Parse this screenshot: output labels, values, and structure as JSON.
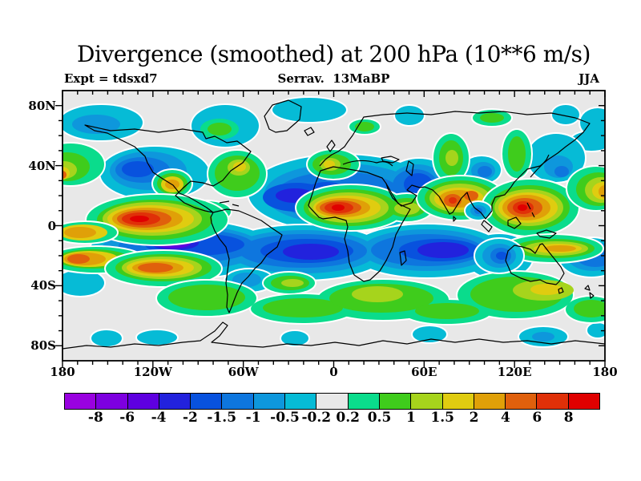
{
  "figure": {
    "title": "Divergence (smoothed) at 200 hPa (10**6 m/s)",
    "subtitle_left": "Expt = tdsxd7",
    "subtitle_center": "Serrav.  13MaBP",
    "subtitle_right": "JJA"
  },
  "chart_data": {
    "type": "filled-contour-map",
    "title": "Divergence (smoothed) at 200 hPa (10**6 m/s)",
    "field": "horizontal divergence, smoothed",
    "pressure_level": "200 hPa",
    "units": "10**6 m/s",
    "experiment": "tdsxd7",
    "epoch_label": "Serrav.  13MaBP",
    "season": "JJA",
    "projection": "global cylindrical lat-lon map, 180W to 180E, 90S to 90N",
    "x_tick_labels": [
      "180",
      "120W",
      "60W",
      "0",
      "60E",
      "120E",
      "180"
    ],
    "x_tick_lons": [
      -180,
      -120,
      -60,
      0,
      60,
      120,
      180
    ],
    "y_tick_labels": [
      "80N",
      "40N",
      "0",
      "40S",
      "80S"
    ],
    "y_tick_lats": [
      80,
      40,
      0,
      -40,
      -80
    ],
    "minor_tick_interval_deg": 10,
    "contour_levels": [
      -8,
      -6,
      -4,
      -2,
      -1.5,
      -1,
      -0.5,
      -0.2,
      0.2,
      0.5,
      1,
      1.5,
      2,
      4,
      6,
      8
    ],
    "palette": [
      "#9901E0",
      "#7D00E0",
      "#5E00E0",
      "#2222DD",
      "#0852DE",
      "#0E76DE",
      "#0E97DC",
      "#06BBD6",
      "#E8E8E8",
      "#0ADC8C",
      "#3FCC1C",
      "#A6D41C",
      "#E0CC10",
      "#E0A008",
      "#E0600C",
      "#E03008",
      "#E00000"
    ],
    "neutral_band_note": "light gray shading shows values between -0.2 and 0.2; contour lines at the +/-0.2 level are drawn in white",
    "features": [
      {
        "region": "eastern tropical Pacific near equator (160W-100W)",
        "sign": "positive",
        "peak_range": "6 to >8"
      },
      {
        "region": "West Africa / Sahel (10W-20E, ~5-18N)",
        "sign": "positive",
        "peak_range": "6 to >8"
      },
      {
        "region": "Arabia and India (~20N)",
        "sign": "positive",
        "peak_range": "4 to 6"
      },
      {
        "region": "Maritime Continent / west Pacific (110E-140E)",
        "sign": "positive",
        "peak_range": "6 to >8"
      },
      {
        "region": "North Atlantic, Mediterranean, North Africa and Middle East (20-40N)",
        "sign": "negative",
        "peak_range": "-2 to -4"
      },
      {
        "region": "southern subtropical band (10S-30S) from South Pacific across Atlantic and Indian Oceans",
        "sign": "negative",
        "peak_range": "-2 to -6, small patch below -6 near 110W 15S"
      },
      {
        "region": "southern mid-latitudes (35-55S)",
        "sign": "positive",
        "peak_range": "1 to 6, orange maxima in SE Pacific and South Atlantic"
      },
      {
        "region": "northern mid/high latitudes",
        "sign": "mixed",
        "peak_range": "weak, -1 to +2 patches"
      }
    ]
  },
  "colorbar": {
    "labels": [
      "-8",
      "-6",
      "-4",
      "-2",
      "-1.5",
      "-1",
      "-0.5",
      "-0.2",
      "0.2",
      "0.5",
      "1",
      "1.5",
      "2",
      "4",
      "6",
      "8"
    ]
  }
}
